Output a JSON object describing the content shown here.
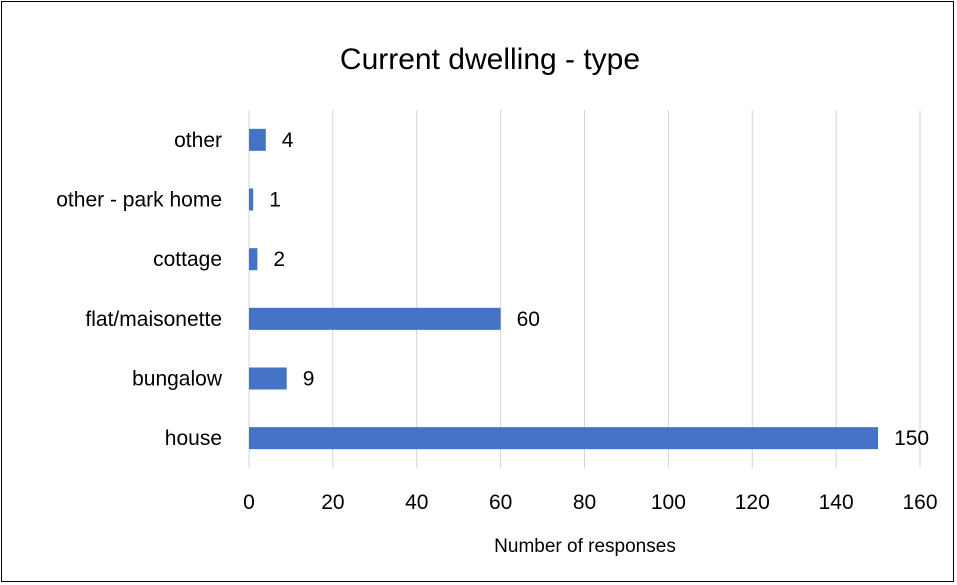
{
  "chart_data": {
    "type": "bar",
    "orientation": "horizontal",
    "title": "Current dwelling - type",
    "xlabel": "Number of responses",
    "ylabel": "",
    "categories": [
      "house",
      "bungalow",
      "flat/maisonette",
      "cottage",
      "other - park home",
      "other"
    ],
    "values": [
      150,
      9,
      60,
      2,
      1,
      4
    ],
    "xlim": [
      0,
      160
    ],
    "ticks": [
      0,
      20,
      40,
      60,
      80,
      100,
      120,
      140,
      160
    ],
    "grid": true,
    "legend": "none",
    "bar_color": "#4472c4",
    "data_labels": true
  }
}
